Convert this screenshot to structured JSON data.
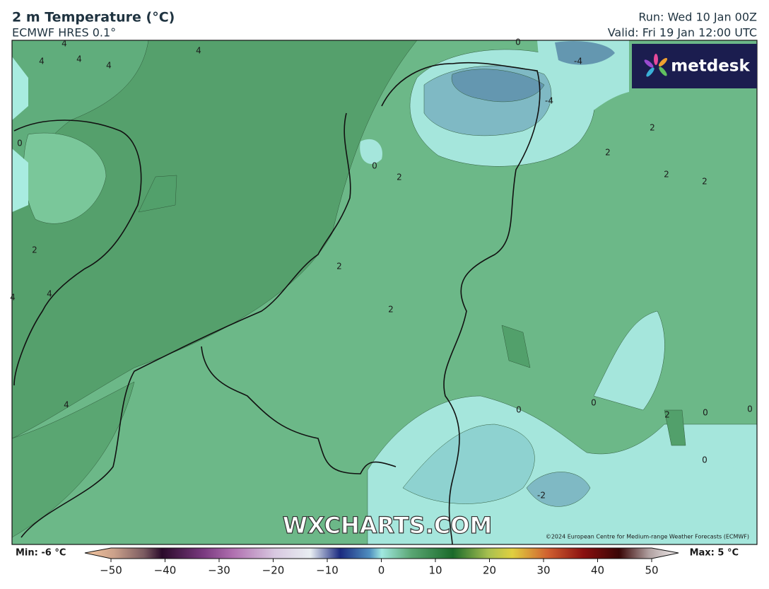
{
  "header": {
    "title": "2 m Temperature (°C)",
    "subtitle": "ECMWF HRES 0.1°",
    "run": "Run: Wed 10 Jan 00Z",
    "valid": "Valid: Fri 19 Jan 12:00 UTC"
  },
  "logo": "metdesk",
  "watermark": "WXCHARTS.COM",
  "copyright": "©2024 European Centre for Medium-range Weather Forecasts (ECMWF)",
  "contour_labels": [
    4,
    4,
    4,
    4,
    4,
    0,
    2,
    4,
    4,
    4,
    0,
    2,
    2,
    2,
    0,
    -4,
    -4,
    2,
    2,
    2,
    2,
    0,
    0,
    2,
    0,
    0,
    0,
    -2
  ],
  "colorbar": {
    "min_label": "Min: -6 °C",
    "max_label": "Max: 5 °C",
    "range": [
      -50,
      50
    ],
    "ticks": [
      {
        "value": -50,
        "label": "−50"
      },
      {
        "value": -40,
        "label": "−40"
      },
      {
        "value": -30,
        "label": "−30"
      },
      {
        "value": -20,
        "label": "−20"
      },
      {
        "value": -10,
        "label": "−10"
      },
      0,
      10,
      20,
      30,
      40,
      50
    ]
  }
}
